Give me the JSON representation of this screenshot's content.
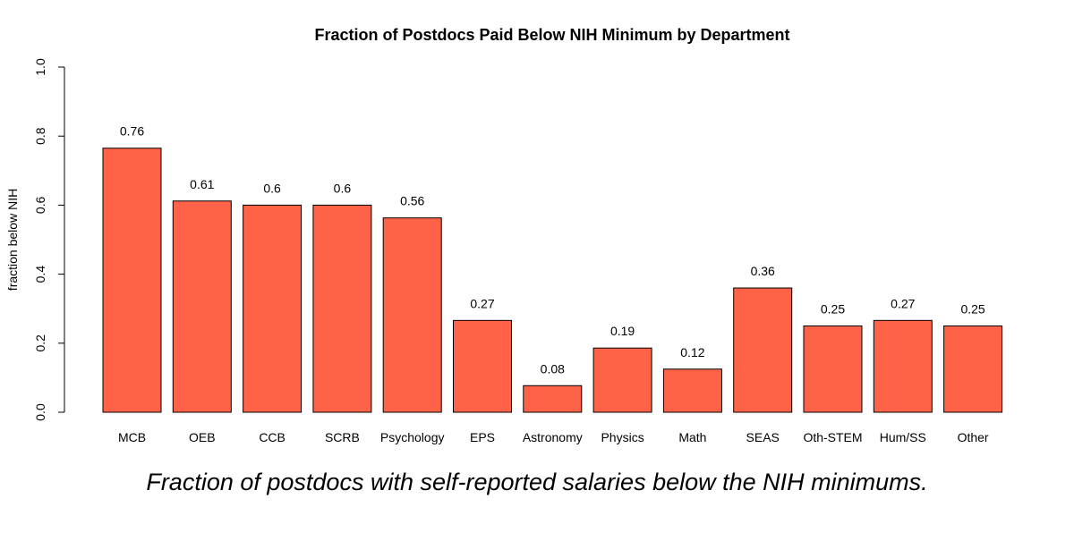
{
  "colors": {
    "bar_fill": "#FF6347",
    "bar_stroke": "#000000"
  },
  "chart_data": {
    "type": "bar",
    "title": "Fraction of Postdocs Paid Below NIH Minimum by Department",
    "xlabel": "",
    "ylabel": "fraction below NIH",
    "ylim": [
      0,
      1.0
    ],
    "yticks": [
      "0.0",
      "0.2",
      "0.4",
      "0.6",
      "0.8",
      "1.0"
    ],
    "categories": [
      "MCB",
      "OEB",
      "CCB",
      "SCRB",
      "Psychology",
      "EPS",
      "Astronomy",
      "Physics",
      "Math",
      "SEAS",
      "Oth-STEM",
      "Hum/SS",
      "Other"
    ],
    "values": [
      0.765,
      0.612,
      0.6,
      0.6,
      0.563,
      0.266,
      0.077,
      0.186,
      0.125,
      0.36,
      0.25,
      0.266,
      0.25
    ],
    "data_labels": [
      "0.76",
      "0.61",
      "0.6",
      "0.6",
      "0.56",
      "0.27",
      "0.08",
      "0.19",
      "0.12",
      "0.36",
      "0.25",
      "0.27",
      "0.25"
    ],
    "grid": false,
    "legend": "none"
  },
  "caption": "Fraction of postdocs with self-reported salaries below the NIH minimums."
}
